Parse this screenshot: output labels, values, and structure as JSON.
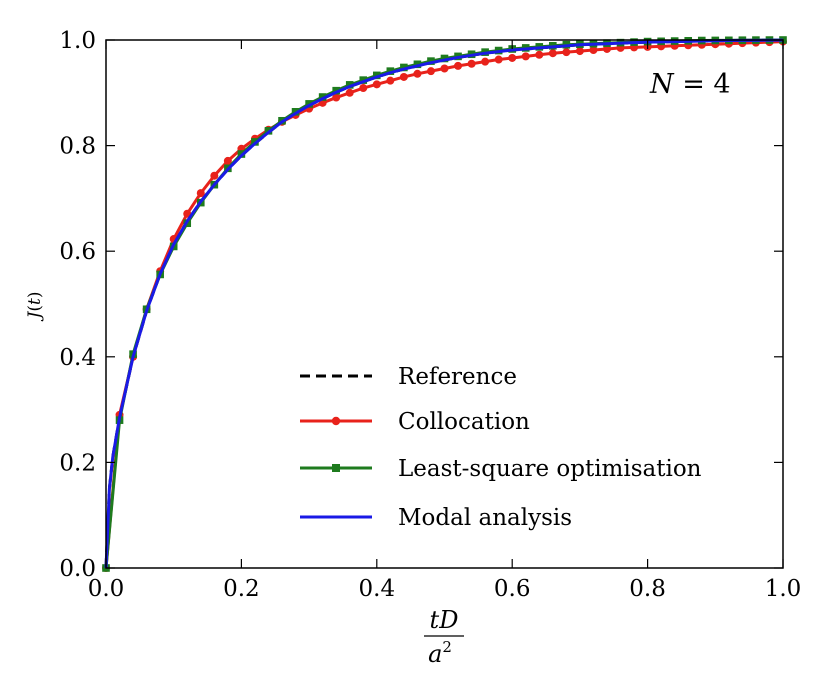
{
  "chart_data": {
    "type": "line",
    "title": "",
    "xlabel": {
      "numerator": "tD",
      "denominator": "a",
      "denominator_exponent": "2"
    },
    "ylabel": {
      "base": "J",
      "arg": "t"
    },
    "xlim": [
      0.0,
      1.0
    ],
    "ylim": [
      0.0,
      1.0
    ],
    "x_ticks": [
      "0.0",
      "0.2",
      "0.4",
      "0.6",
      "0.8",
      "1.0"
    ],
    "y_ticks": [
      "0.0",
      "0.2",
      "0.4",
      "0.6",
      "0.8",
      "1.0"
    ],
    "grid": false,
    "legend_position": "center-right",
    "annotation": {
      "text_var": "N",
      "text_rest": " = 4",
      "position": "top-right"
    },
    "series": [
      {
        "name": "Reference",
        "color": "#000000",
        "style": "dashed",
        "marker": "none",
        "x": [
          0,
          0.005,
          0.01,
          0.02,
          0.04,
          0.06,
          0.08,
          0.1,
          0.12,
          0.14,
          0.16,
          0.18,
          0.2,
          0.22,
          0.24,
          0.26,
          0.28,
          0.3,
          0.32,
          0.34,
          0.36,
          0.38,
          0.4,
          0.42,
          0.44,
          0.46,
          0.48,
          0.5,
          0.52,
          0.54,
          0.56,
          0.58,
          0.6,
          0.62,
          0.64,
          0.66,
          0.68,
          0.7,
          0.72,
          0.74,
          0.76,
          0.78,
          0.8,
          0.82,
          0.84,
          0.86,
          0.88,
          0.9,
          0.92,
          0.94,
          0.96,
          0.98,
          1.0
        ],
        "y": [
          0.0,
          0.15,
          0.21,
          0.285,
          0.4,
          0.487,
          0.557,
          0.613,
          0.657,
          0.694,
          0.726,
          0.755,
          0.781,
          0.804,
          0.825,
          0.845,
          0.861,
          0.876,
          0.889,
          0.901,
          0.912,
          0.921,
          0.93,
          0.938,
          0.945,
          0.951,
          0.957,
          0.962,
          0.967,
          0.971,
          0.975,
          0.978,
          0.981,
          0.983,
          0.985,
          0.987,
          0.989,
          0.991,
          0.992,
          0.993,
          0.994,
          0.995,
          0.996,
          0.9965,
          0.997,
          0.9975,
          0.998,
          0.9985,
          0.999,
          0.9992,
          0.9994,
          0.9996,
          0.9998
        ]
      },
      {
        "name": "Collocation",
        "color": "#e8221b",
        "style": "solid",
        "marker": "circle",
        "x": [
          0,
          0.02,
          0.04,
          0.06,
          0.08,
          0.1,
          0.12,
          0.14,
          0.16,
          0.18,
          0.2,
          0.22,
          0.24,
          0.26,
          0.28,
          0.3,
          0.32,
          0.34,
          0.36,
          0.38,
          0.4,
          0.42,
          0.44,
          0.46,
          0.48,
          0.5,
          0.52,
          0.54,
          0.56,
          0.58,
          0.6,
          0.62,
          0.64,
          0.66,
          0.68,
          0.7,
          0.72,
          0.74,
          0.76,
          0.78,
          0.8,
          0.82,
          0.84,
          0.86,
          0.88,
          0.9,
          0.92,
          0.94,
          0.96,
          0.98,
          1.0
        ],
        "y": [
          0.0,
          0.29,
          0.4,
          0.49,
          0.562,
          0.623,
          0.671,
          0.71,
          0.743,
          0.771,
          0.794,
          0.813,
          0.83,
          0.845,
          0.858,
          0.87,
          0.881,
          0.891,
          0.9,
          0.909,
          0.916,
          0.923,
          0.93,
          0.936,
          0.941,
          0.946,
          0.951,
          0.955,
          0.959,
          0.963,
          0.966,
          0.969,
          0.972,
          0.975,
          0.977,
          0.979,
          0.981,
          0.983,
          0.985,
          0.986,
          0.987,
          0.988,
          0.989,
          0.99,
          0.991,
          0.992,
          0.993,
          0.994,
          0.995,
          0.996,
          0.997
        ]
      },
      {
        "name": "Least-square optimisation",
        "color": "#1e7b1e",
        "style": "solid",
        "marker": "square",
        "x": [
          0,
          0.02,
          0.04,
          0.06,
          0.08,
          0.1,
          0.12,
          0.14,
          0.16,
          0.18,
          0.2,
          0.22,
          0.24,
          0.26,
          0.28,
          0.3,
          0.32,
          0.34,
          0.36,
          0.38,
          0.4,
          0.42,
          0.44,
          0.46,
          0.48,
          0.5,
          0.52,
          0.54,
          0.56,
          0.58,
          0.6,
          0.62,
          0.64,
          0.66,
          0.68,
          0.7,
          0.72,
          0.74,
          0.76,
          0.78,
          0.8,
          0.82,
          0.84,
          0.86,
          0.88,
          0.9,
          0.92,
          0.94,
          0.96,
          0.98,
          1.0
        ],
        "y": [
          0.0,
          0.28,
          0.405,
          0.49,
          0.556,
          0.609,
          0.653,
          0.692,
          0.726,
          0.757,
          0.784,
          0.807,
          0.828,
          0.847,
          0.864,
          0.879,
          0.892,
          0.904,
          0.915,
          0.924,
          0.933,
          0.941,
          0.948,
          0.954,
          0.96,
          0.965,
          0.969,
          0.973,
          0.977,
          0.98,
          0.983,
          0.985,
          0.987,
          0.989,
          0.991,
          0.992,
          0.993,
          0.994,
          0.995,
          0.996,
          0.997,
          0.9975,
          0.998,
          0.9985,
          0.999,
          0.9992,
          0.9994,
          0.9996,
          0.9998,
          0.9999,
          1.0
        ]
      },
      {
        "name": "Modal analysis",
        "color": "#1a1ae6",
        "style": "solid",
        "marker": "none",
        "x": [
          0,
          0.005,
          0.01,
          0.02,
          0.04,
          0.06,
          0.08,
          0.1,
          0.12,
          0.14,
          0.16,
          0.18,
          0.2,
          0.22,
          0.24,
          0.26,
          0.28,
          0.3,
          0.32,
          0.34,
          0.36,
          0.38,
          0.4,
          0.42,
          0.44,
          0.46,
          0.48,
          0.5,
          0.52,
          0.54,
          0.56,
          0.58,
          0.6,
          0.62,
          0.64,
          0.66,
          0.68,
          0.7,
          0.72,
          0.74,
          0.76,
          0.78,
          0.8,
          0.82,
          0.84,
          0.86,
          0.88,
          0.9,
          0.92,
          0.94,
          0.96,
          0.98,
          1.0
        ],
        "y": [
          0.0,
          0.15,
          0.21,
          0.285,
          0.4,
          0.487,
          0.557,
          0.613,
          0.657,
          0.694,
          0.726,
          0.755,
          0.781,
          0.804,
          0.825,
          0.845,
          0.861,
          0.876,
          0.889,
          0.901,
          0.912,
          0.921,
          0.93,
          0.938,
          0.945,
          0.951,
          0.957,
          0.962,
          0.967,
          0.971,
          0.975,
          0.978,
          0.981,
          0.983,
          0.985,
          0.987,
          0.989,
          0.991,
          0.992,
          0.993,
          0.994,
          0.995,
          0.996,
          0.9965,
          0.997,
          0.9975,
          0.998,
          0.9985,
          0.999,
          0.9992,
          0.9994,
          0.9996,
          0.9998
        ]
      }
    ]
  }
}
